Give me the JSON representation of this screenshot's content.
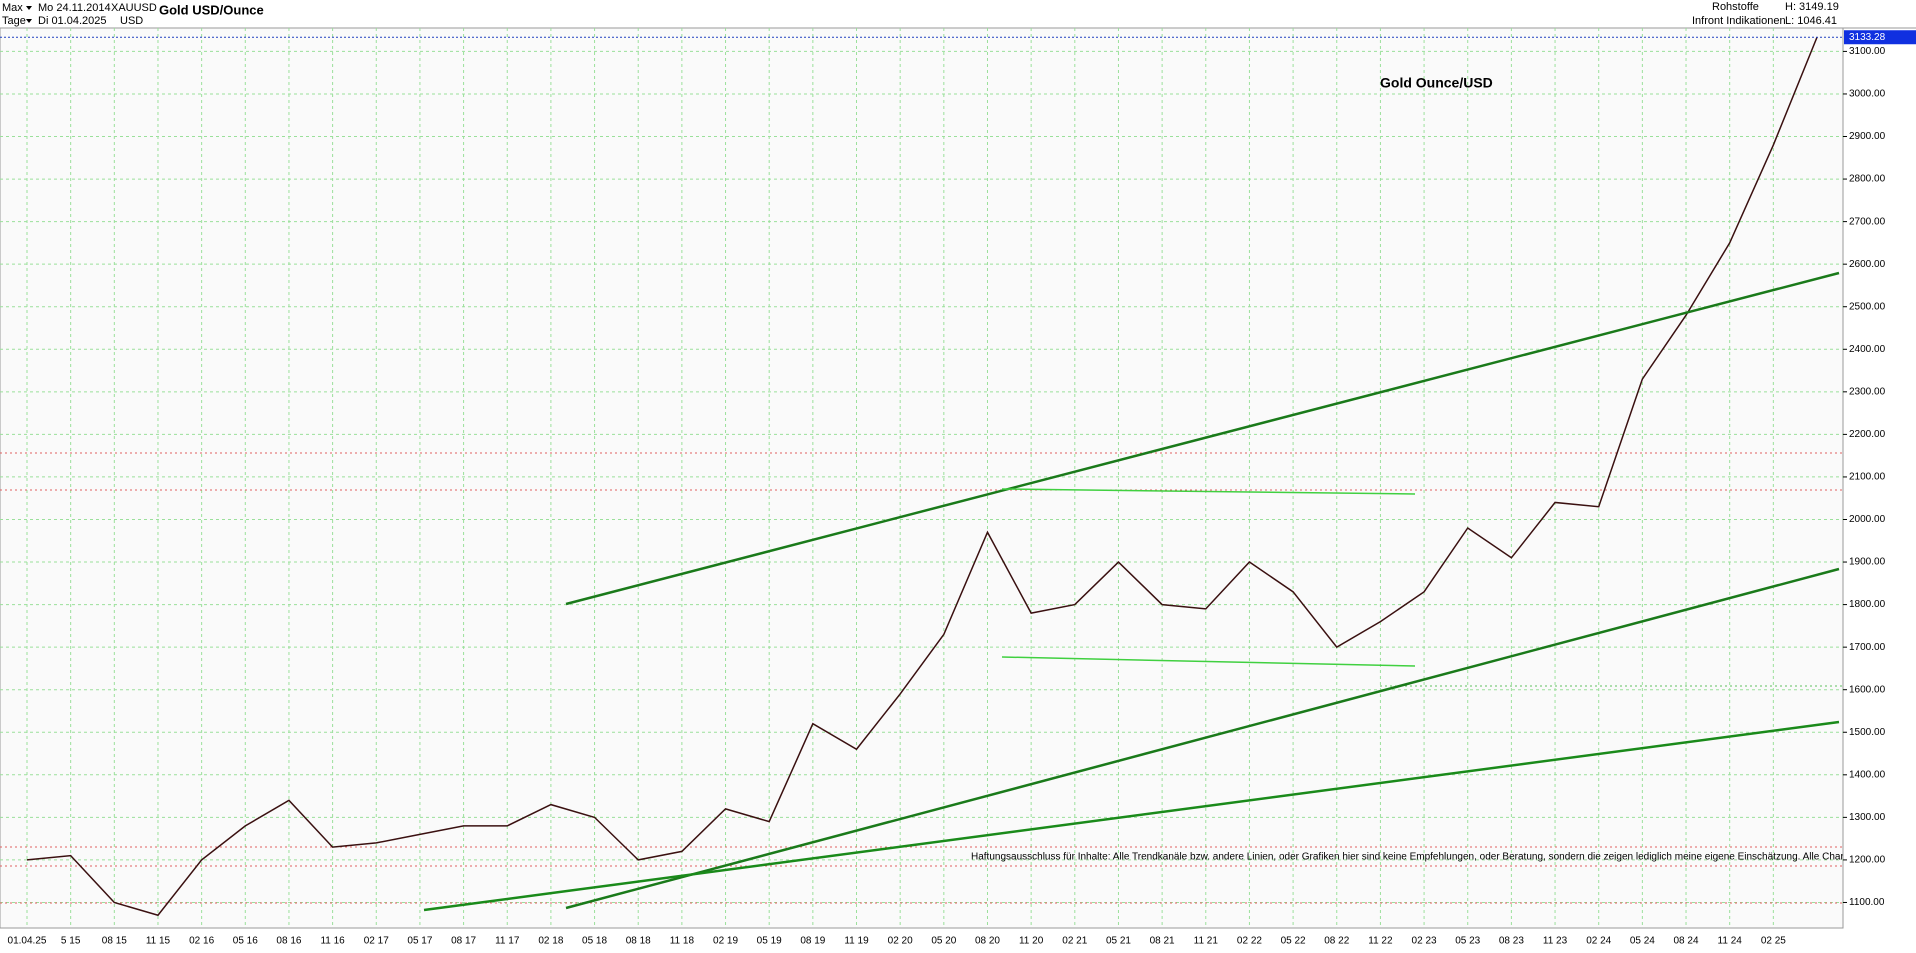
{
  "header": {
    "range": "Max",
    "from": "Mo 24.11.2014",
    "symbol": "XAUUSD",
    "interval": "Tage",
    "to": "Di 01.04.2025",
    "currency": "USD",
    "title": "Gold USD/Ounce",
    "group": "Rohstoffe",
    "source": "Infront Indikationen",
    "high": "H: 3149.19",
    "low": "L: 1046.41"
  },
  "chart_data": {
    "type": "line",
    "annotation": "Gold Ounce/USD",
    "disclaimer": "Haftungsausschluss für Inhalte: Alle Trendkanäle bzw. andere Linien, oder Grafiken hier sind keine Empfehlungen, oder Beratung, sondern die zeigen lediglich meine eigene Einschätzung. Alle Chartdaten sind ohne",
    "categories": [
      "01.04.25",
      "5 15",
      "08 15",
      "11 15",
      "02 16",
      "05 16",
      "08 16",
      "11 16",
      "02 17",
      "05 17",
      "08 17",
      "11 17",
      "02 18",
      "05 18",
      "08 18",
      "11 18",
      "02 19",
      "05 19",
      "08 19",
      "11 19",
      "02 20",
      "05 20",
      "08 20",
      "11 20",
      "02 21",
      "05 21",
      "08 21",
      "11 21",
      "02 22",
      "05 22",
      "08 22",
      "11 22",
      "02 23",
      "05 23",
      "08 23",
      "11 23",
      "02 24",
      "05 24",
      "08 24",
      "11 24",
      "02 25",
      null
    ],
    "series": [
      {
        "name": "XAUUSD",
        "color": "#3a1010",
        "values": [
          1200,
          1210,
          1100,
          1070,
          1200,
          1280,
          1340,
          1230,
          1240,
          1260,
          1280,
          1280,
          1330,
          1300,
          1200,
          1220,
          1320,
          1290,
          1520,
          1460,
          1590,
          1730,
          1970,
          1780,
          1800,
          1900,
          1800,
          1790,
          1900,
          1830,
          1700,
          1760,
          1830,
          1980,
          1910,
          2040,
          2030,
          2330,
          2480,
          2650,
          2880,
          3133.28
        ]
      }
    ],
    "last_value_label": "3133.28",
    "ylim": [
      1040,
      3155
    ],
    "yticks": [
      {
        "value": 1100,
        "label": "1100.00"
      },
      {
        "value": 1200,
        "label": "1200.00"
      },
      {
        "value": 1300,
        "label": "1300.00"
      },
      {
        "value": 1400,
        "label": "1400.00"
      },
      {
        "value": 1500,
        "label": "1500.00"
      },
      {
        "value": 1600,
        "label": "1600.00"
      },
      {
        "value": 1700,
        "label": "1700.00"
      },
      {
        "value": 1800,
        "label": "1800.00"
      },
      {
        "value": 1900,
        "label": "1900.00"
      },
      {
        "value": 2000,
        "label": "2000.00"
      },
      {
        "value": 2100,
        "label": "2100.00"
      },
      {
        "value": 2200,
        "label": "2200.00"
      },
      {
        "value": 2300,
        "label": "2300.00"
      },
      {
        "value": 2400,
        "label": "2400.00"
      },
      {
        "value": 2500,
        "label": "2500.00"
      },
      {
        "value": 2600,
        "label": "2600.00"
      },
      {
        "value": 2700,
        "label": "2700.00"
      },
      {
        "value": 2800,
        "label": "2800.00"
      },
      {
        "value": 2900,
        "label": "2900.00"
      },
      {
        "value": 3000,
        "label": "3000.00"
      },
      {
        "value": 3100,
        "label": "3100.00"
      }
    ],
    "grid": true
  }
}
